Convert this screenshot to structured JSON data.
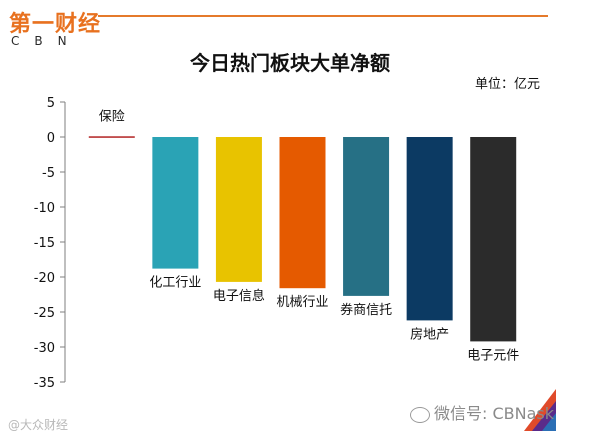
{
  "logo": {
    "text_cn": "第一财经",
    "text_en": "CBN"
  },
  "title": "今日热门板块大单净额",
  "unit": "单位：亿元",
  "watermark_left": "@大众财经",
  "watermark_right": "微信号: CBNask",
  "colors": {
    "header_rule": "#e57a2b",
    "bar_colors": [
      "#b22222",
      "#2aa3b5",
      "#e8c300",
      "#e55a00",
      "#267085",
      "#0c3a63",
      "#2b2b2b"
    ]
  },
  "chart_data": {
    "type": "bar",
    "title": "今日热门板块大单净额",
    "ylabel": "单位：亿元",
    "ylim": [
      -35,
      5
    ],
    "yticks": [
      5,
      0,
      -5,
      -10,
      -15,
      -20,
      -25,
      -30,
      -35
    ],
    "grid": false,
    "categories": [
      "保险",
      "化工行业",
      "电子信息",
      "机械行业",
      "券商信托",
      "房地产",
      "电子元件"
    ],
    "values": [
      0.1,
      -18.8,
      -20.7,
      -21.6,
      -22.7,
      -26.2,
      -29.2
    ]
  }
}
